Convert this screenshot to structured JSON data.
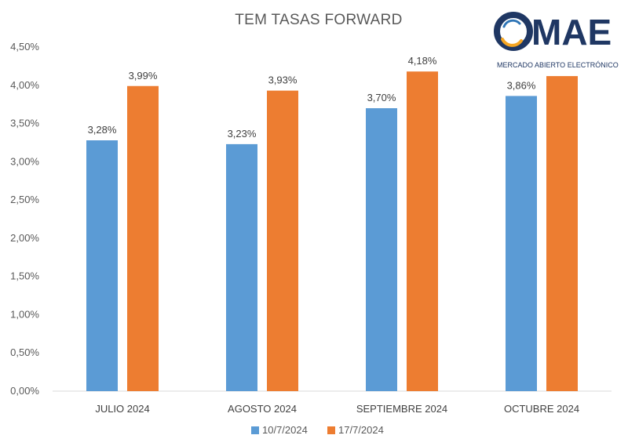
{
  "chart_data": {
    "type": "bar",
    "title": "TEM TASAS FORWARD",
    "categories": [
      "JULIO 2024",
      "AGOSTO 2024",
      "SEPTIEMBRE 2024",
      "OCTUBRE 2024"
    ],
    "series": [
      {
        "name": "10/7/2024",
        "color": "#5b9bd5",
        "values": [
          3.28,
          3.23,
          3.7,
          3.86
        ],
        "labels": [
          "3,28%",
          "3,23%",
          "3,70%",
          "3,86%"
        ]
      },
      {
        "name": "17/7/2024",
        "color": "#ed7d31",
        "values": [
          3.99,
          3.93,
          4.18,
          4.12
        ],
        "labels": [
          "3,99%",
          "3,93%",
          "4,18%",
          ""
        ]
      }
    ],
    "ylim": [
      0,
      4.5
    ],
    "yticks": [
      0,
      0.5,
      1.0,
      1.5,
      2.0,
      2.5,
      3.0,
      3.5,
      4.0,
      4.5
    ],
    "ytick_labels": [
      "0,00%",
      "0,50%",
      "1,00%",
      "1,50%",
      "2,00%",
      "2,50%",
      "3,00%",
      "3,50%",
      "4,00%",
      "4,50%"
    ],
    "grid": false,
    "legend": "bottom"
  },
  "logo": {
    "word": "MAE",
    "subtitle": "MERCADO ABIERTO ELECTRÓNICO",
    "color": "#1f3763",
    "accent": "#f5a623"
  }
}
